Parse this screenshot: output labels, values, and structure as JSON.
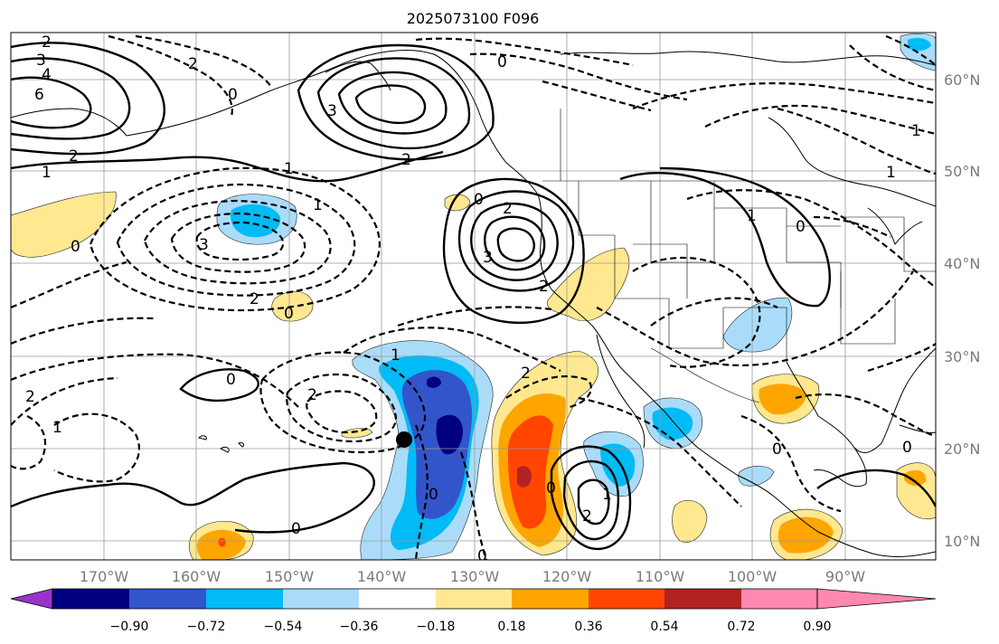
{
  "title": "2025073100 F096",
  "map": {
    "lon_labels": [
      "170°W",
      "160°W",
      "150°W",
      "140°W",
      "130°W",
      "120°W",
      "110°W",
      "100°W",
      "90°W"
    ],
    "lat_labels": [
      "60°N",
      "50°N",
      "40°N",
      "30°N",
      "20°N",
      "10°N"
    ],
    "marker": {
      "lon": -138.5,
      "lat": 21.0,
      "color": "#000000"
    }
  },
  "colorbar": {
    "ticks": [
      "−0.90",
      "−0.72",
      "−0.54",
      "−0.36",
      "−0.18",
      "0.18",
      "0.36",
      "0.54",
      "0.72",
      "0.90"
    ],
    "colors": [
      "#9933cc",
      "#000080",
      "#3355cc",
      "#00bbf5",
      "#aadcfa",
      "#ffffff",
      "#ffe890",
      "#ffa500",
      "#ff4500",
      "#b22222",
      "#ff88b0"
    ]
  },
  "contour_labels": {
    "pos": [
      "3",
      "4",
      "6",
      "1",
      "2",
      "3",
      "2",
      "1",
      "2",
      "3",
      "1",
      "0",
      "2",
      "0",
      "1",
      "0",
      "0",
      "0",
      "0",
      "0",
      "2",
      "0",
      "1"
    ],
    "neg": [
      "2",
      "2",
      "0",
      "0",
      "3",
      "2",
      "2",
      "0",
      "1",
      "2",
      "1",
      "0",
      "2",
      "1",
      "1",
      "0"
    ]
  }
}
